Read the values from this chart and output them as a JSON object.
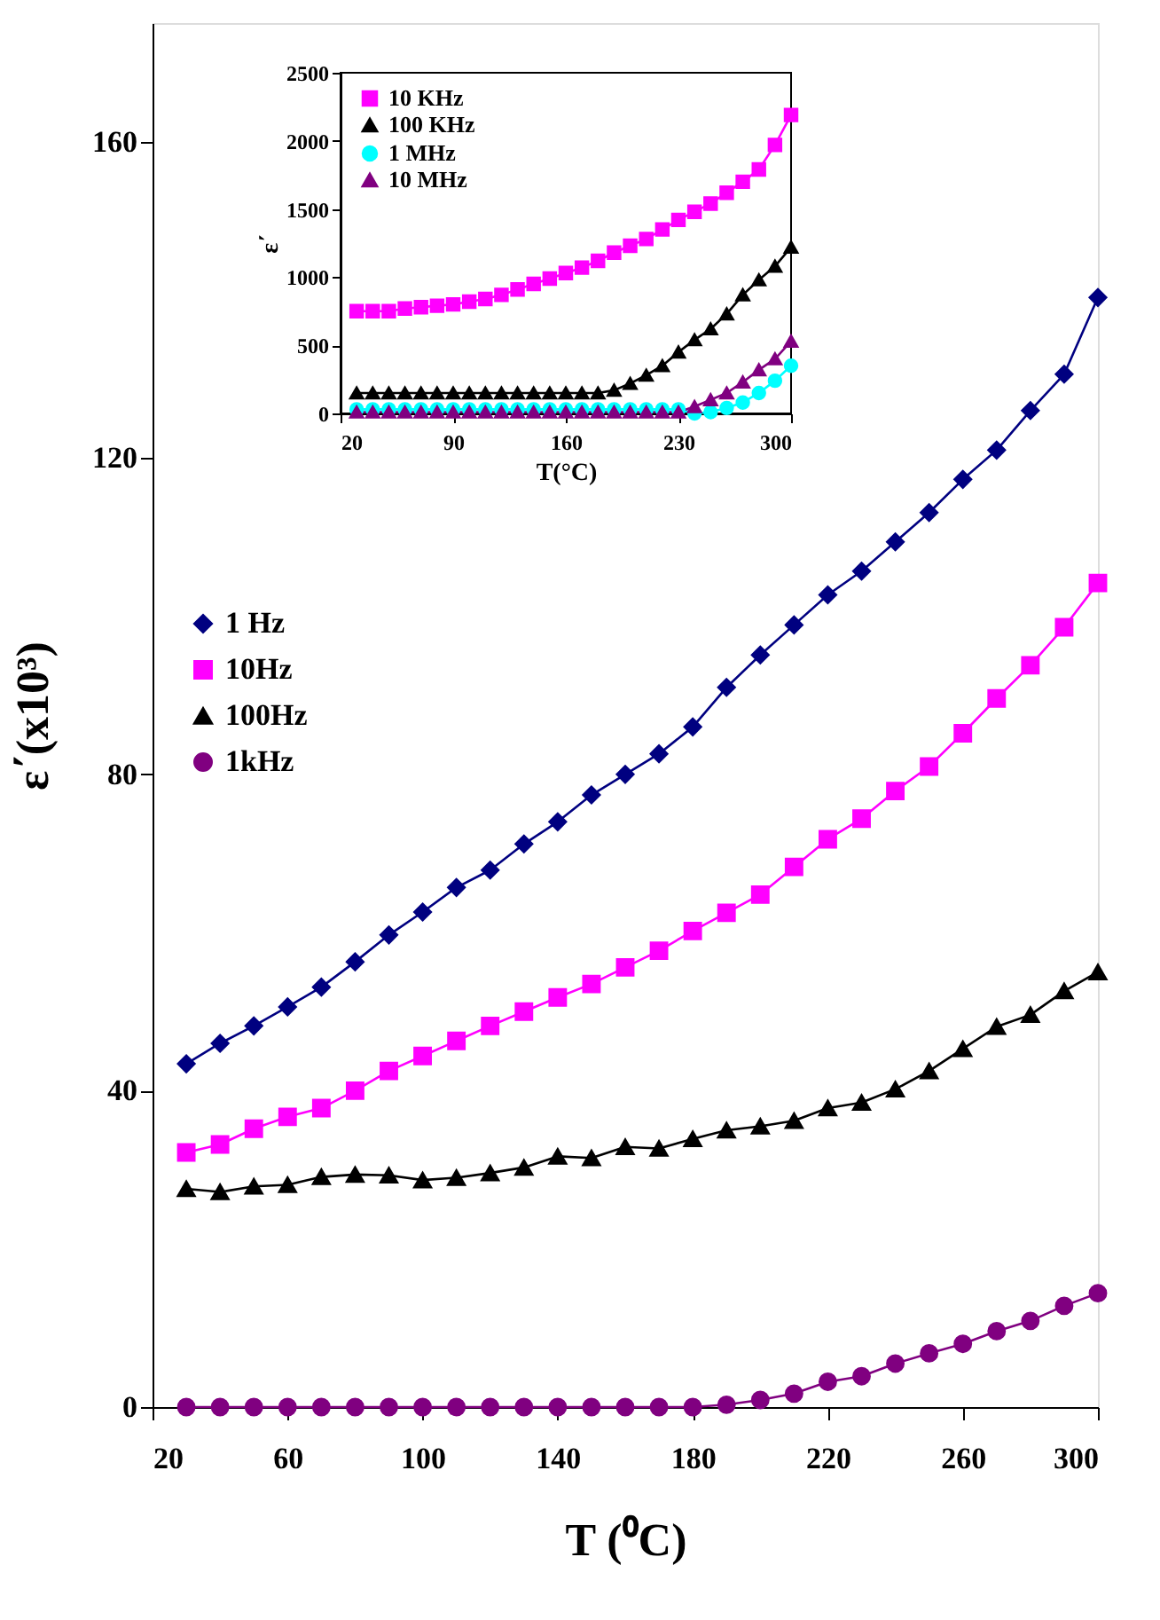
{
  "chart_data": [
    {
      "type": "line",
      "xlabel": "T (⁰C)",
      "ylabel": "ε΄(x10³)",
      "x": [
        30,
        40,
        50,
        60,
        70,
        80,
        90,
        100,
        110,
        120,
        130,
        140,
        150,
        160,
        170,
        180,
        190,
        200,
        210,
        220,
        230,
        240,
        250,
        260,
        270,
        280,
        290,
        300
      ],
      "xlim": [
        20,
        300
      ],
      "xticks": [
        20,
        60,
        100,
        140,
        180,
        220,
        260,
        300
      ],
      "ylim": [
        0,
        175
      ],
      "yticks": [
        0,
        40,
        80,
        120,
        160
      ],
      "grid": false,
      "legend": "left",
      "series": [
        {
          "name": "1 Hz",
          "color": "#000080",
          "marker": "diamond",
          "values": [
            43.4,
            46.0,
            48.2,
            50.6,
            53.1,
            56.3,
            59.7,
            62.6,
            65.7,
            67.9,
            71.2,
            74.0,
            77.4,
            80.0,
            82.6,
            86.0,
            91.0,
            95.1,
            98.9,
            102.7,
            105.7,
            109.4,
            113.1,
            117.3,
            121.0,
            126.0,
            130.6,
            140.3
          ]
        },
        {
          "name": "10Hz",
          "color": "#ff00ff",
          "marker": "square",
          "values": [
            32.2,
            33.2,
            35.2,
            36.7,
            37.8,
            40.0,
            42.5,
            44.4,
            46.3,
            48.2,
            50.0,
            51.8,
            53.5,
            55.6,
            57.7,
            60.2,
            62.5,
            64.8,
            68.3,
            71.8,
            74.4,
            77.9,
            81.0,
            85.2,
            89.6,
            93.8,
            98.6,
            104.2
          ]
        },
        {
          "name": "100Hz",
          "color": "#000000",
          "marker": "triangle",
          "values": [
            27.6,
            27.2,
            27.9,
            28.1,
            29.1,
            29.4,
            29.3,
            28.7,
            29.0,
            29.6,
            30.3,
            31.7,
            31.5,
            32.9,
            32.7,
            33.9,
            35.0,
            35.5,
            36.2,
            37.8,
            38.5,
            40.2,
            42.5,
            45.3,
            48.1,
            49.6,
            52.6,
            55.0
          ]
        },
        {
          "name": "1kHz",
          "color": "#800080",
          "marker": "circle",
          "values": [
            0,
            0,
            0,
            0,
            0,
            0,
            0,
            0,
            0,
            0,
            0,
            0,
            0,
            0,
            0,
            0,
            0.3,
            0.9,
            1.7,
            3.2,
            3.9,
            5.5,
            6.8,
            8.0,
            9.6,
            10.9,
            12.8,
            14.4
          ]
        }
      ]
    },
    {
      "type": "line",
      "xlabel": "T(°C)",
      "ylabel": "ε΄",
      "x": [
        30,
        40,
        50,
        60,
        70,
        80,
        90,
        100,
        110,
        120,
        130,
        140,
        150,
        160,
        170,
        180,
        190,
        200,
        210,
        220,
        230,
        240,
        250,
        260,
        270,
        280,
        290,
        300
      ],
      "xlim": [
        20,
        300
      ],
      "xticks": [
        20,
        90,
        160,
        230,
        300
      ],
      "ylim": [
        0,
        2500
      ],
      "yticks": [
        0,
        500,
        1000,
        1500,
        2000,
        2500
      ],
      "grid": false,
      "legend": "top left",
      "series": [
        {
          "name": "10 KHz",
          "color": "#ff00ff",
          "marker": "square",
          "values": [
            750,
            750,
            750,
            770,
            780,
            790,
            800,
            820,
            840,
            870,
            910,
            950,
            990,
            1030,
            1070,
            1120,
            1180,
            1230,
            1280,
            1350,
            1420,
            1480,
            1540,
            1620,
            1700,
            1790,
            1970,
            2190
          ]
        },
        {
          "name": "100 KHz",
          "color": "#000000",
          "marker": "triangle",
          "values": [
            150,
            150,
            150,
            150,
            150,
            150,
            150,
            150,
            150,
            150,
            150,
            150,
            150,
            150,
            150,
            150,
            170,
            220,
            280,
            350,
            450,
            540,
            620,
            730,
            870,
            980,
            1080,
            1220
          ]
        },
        {
          "name": "1 MHz",
          "color": "#00ffff",
          "marker": "circle",
          "values": [
            30,
            30,
            30,
            30,
            30,
            30,
            30,
            30,
            30,
            30,
            30,
            30,
            30,
            30,
            30,
            30,
            30,
            30,
            30,
            30,
            30,
            0,
            10,
            40,
            80,
            150,
            240,
            350
          ]
        },
        {
          "name": "10 MHz",
          "color": "#800080",
          "marker": "triangle",
          "values": [
            10,
            10,
            10,
            10,
            10,
            10,
            10,
            10,
            10,
            10,
            10,
            10,
            10,
            10,
            10,
            10,
            10,
            10,
            10,
            10,
            10,
            50,
            100,
            150,
            230,
            320,
            400,
            530
          ]
        }
      ]
    }
  ]
}
